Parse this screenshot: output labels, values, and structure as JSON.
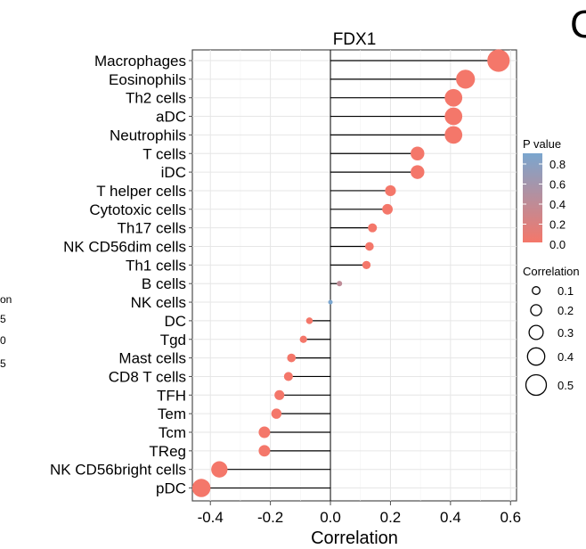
{
  "chart_data": {
    "type": "lollipop",
    "title": "FDX1",
    "xlabel": "Correlation",
    "xlim": [
      -0.46,
      0.62
    ],
    "xticks": [
      -0.4,
      -0.2,
      0.0,
      0.2,
      0.4,
      0.6
    ],
    "xtick_labels": [
      "-0.4",
      "-0.2",
      "0.0",
      "0.2",
      "0.4",
      "0.6"
    ],
    "grid": true,
    "categories": [
      "Macrophages",
      "Eosinophils",
      "Th2 cells",
      "aDC",
      "Neutrophils",
      "T cells",
      "iDC",
      "T helper cells",
      "Cytotoxic cells",
      "Th17 cells",
      "NK CD56dim cells",
      "Th1 cells",
      "B cells",
      "NK cells",
      "DC",
      "Tgd",
      "Mast cells",
      "CD8 T cells",
      "TFH",
      "Tem",
      "Tcm",
      "TReg",
      "NK CD56bright cells",
      "pDC"
    ],
    "correlation": [
      0.56,
      0.45,
      0.41,
      0.41,
      0.41,
      0.29,
      0.29,
      0.2,
      0.19,
      0.14,
      0.13,
      0.12,
      0.03,
      0.0,
      -0.07,
      -0.09,
      -0.13,
      -0.14,
      -0.17,
      -0.18,
      -0.22,
      -0.22,
      -0.37,
      -0.43
    ],
    "p_value": [
      0.0,
      0.0,
      0.0,
      0.0,
      0.0,
      0.0,
      0.0,
      0.0,
      0.0,
      0.0,
      0.0,
      0.0,
      0.4,
      0.9,
      0.0,
      0.0,
      0.0,
      0.0,
      0.0,
      0.0,
      0.0,
      0.0,
      0.0,
      0.0
    ],
    "legend_pvalue": {
      "title": "P value",
      "ticks": [
        "0.8",
        "0.6",
        "0.4",
        "0.2",
        "0.0"
      ],
      "colors": [
        "#7aa6cf",
        "#f4776a"
      ]
    },
    "legend_correlation": {
      "title": "Correlation",
      "values": [
        0.1,
        0.2,
        0.3,
        0.4,
        0.5
      ],
      "labels": [
        "0.1",
        "0.2",
        "0.3",
        "0.4",
        "0.5"
      ]
    },
    "left_fragment": [
      "on",
      "5",
      "0",
      "5"
    ],
    "corner_fragment": "C"
  }
}
